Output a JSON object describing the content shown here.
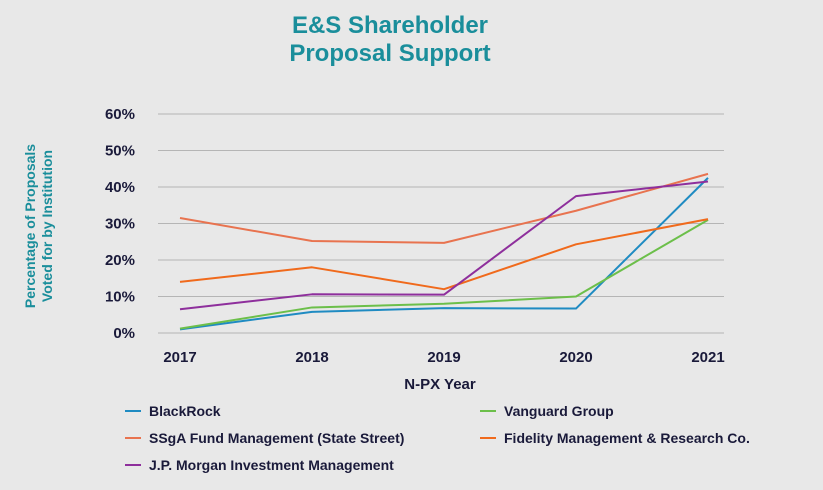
{
  "title_lines": [
    "E&S Shareholder",
    "Proposal Support"
  ],
  "chart_data": {
    "type": "line",
    "title": "E&S Shareholder Proposal Support",
    "xlabel": "N-PX Year",
    "ylabel_lines": [
      "Percentage of Proposals",
      "Voted for by Institution"
    ],
    "categories": [
      "2017",
      "2018",
      "2019",
      "2020",
      "2021"
    ],
    "ylim": [
      0,
      60
    ],
    "yticks": [
      0,
      10,
      20,
      30,
      40,
      50,
      60
    ],
    "ytick_labels": [
      "0%",
      "10%",
      "20%",
      "30%",
      "40%",
      "50%",
      "60%"
    ],
    "grid": true,
    "legend_position": "bottom",
    "series": [
      {
        "name": "BlackRock",
        "color": "#1f8bc2",
        "values": [
          1,
          5.8,
          6.8,
          6.7,
          42.5
        ]
      },
      {
        "name": "Vanguard Group",
        "color": "#6cbf4a",
        "values": [
          1.2,
          7,
          8,
          10,
          31
        ]
      },
      {
        "name": "SSgA Fund Management (State Street)",
        "color": "#e8734f",
        "values": [
          31.5,
          25.2,
          24.7,
          33.5,
          43.6
        ]
      },
      {
        "name": "Fidelity Management & Research Co.",
        "color": "#f06a1c",
        "values": [
          14,
          18,
          12,
          24.3,
          31.2
        ]
      },
      {
        "name": "J.P. Morgan Investment Management",
        "color": "#8e2f9c",
        "values": [
          6.5,
          10.6,
          10.5,
          37.5,
          41.5
        ]
      }
    ]
  },
  "colors": {
    "title": "#1a8e9b",
    "text": "#1a1a3a",
    "grid": "#b5b5b5",
    "background": "#e8e8e8"
  }
}
